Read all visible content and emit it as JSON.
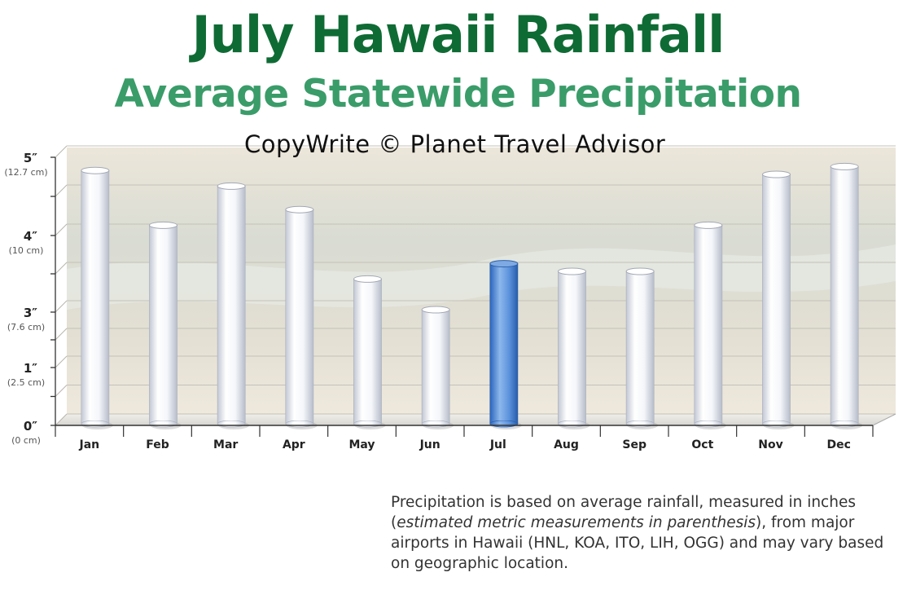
{
  "title": "July Hawaii Rainfall",
  "subtitle": "Average Statewide Precipitation",
  "copyright": "CopyWrite © Planet Travel Advisor",
  "note": {
    "part1": "Precipitation is based on average rainfall, measured in inches (",
    "italic": "estimated metric measurements in parenthesis",
    "part2": "), from major airports in Hawaii (HNL, KOA, ITO, LIH, OGG) and may vary based on geographic location."
  },
  "colors": {
    "title": "#0f6b34",
    "subtitle": "#3a9c69",
    "bar": "#f4f6fa",
    "highlight": "#4a86d4"
  },
  "chart_data": {
    "type": "bar",
    "title": "July Hawaii Rainfall",
    "subtitle": "Average Statewide Precipitation",
    "xlabel": "",
    "ylabel": "",
    "categories": [
      "Jan",
      "Feb",
      "Mar",
      "Apr",
      "May",
      "Jun",
      "Jul",
      "Aug",
      "Sep",
      "Oct",
      "Nov",
      "Dec"
    ],
    "values": [
      4.8,
      4.1,
      4.6,
      4.3,
      3.4,
      3.0,
      3.6,
      3.5,
      3.5,
      4.1,
      4.75,
      4.85
    ],
    "highlight_category": "Jul",
    "y_ticks": [
      {
        "value": 0,
        "label": "0″",
        "sublabel": "(0 cm)"
      },
      {
        "value": 1,
        "label": "1″",
        "sublabel": "(2.5 cm)"
      },
      {
        "value": 3,
        "label": "3″",
        "sublabel": "(7.6 cm)"
      },
      {
        "value": 4,
        "label": "4″",
        "sublabel": "(10 cm)"
      },
      {
        "value": 5,
        "label": "5″",
        "sublabel": "(12.7 cm)"
      }
    ],
    "ylim": [
      0,
      5
    ],
    "grid": true
  }
}
